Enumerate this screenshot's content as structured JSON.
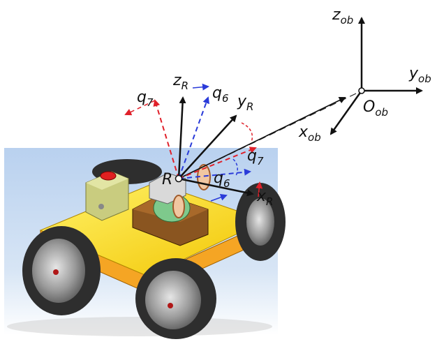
{
  "labels": {
    "z_ob": {
      "main": "z",
      "sub": "ob"
    },
    "y_ob": {
      "main": "y",
      "sub": "ob"
    },
    "x_ob": {
      "main": "x",
      "sub": "ob"
    },
    "O_ob": {
      "main": "O",
      "sub": "ob"
    },
    "z_R": {
      "main": "z",
      "sub": "R"
    },
    "y_R": {
      "main": "y",
      "sub": "R"
    },
    "x_R": {
      "main": "x",
      "sub": "R"
    },
    "R": "R",
    "q6_upper": {
      "main": "q",
      "sub": "6"
    },
    "q7_upper": {
      "main": "q",
      "sub": "7"
    },
    "q6_lower": {
      "main": "q",
      "sub": "6"
    },
    "q7_lower": {
      "main": "q",
      "sub": "7"
    }
  },
  "colors": {
    "axis": "#111111",
    "red_arrow": "#e0202a",
    "blue_arrow": "#2a3bd9",
    "chassis": "#ffd21a",
    "chassis_side": "#f0a020",
    "wheel": "#3a3a3a",
    "platform_bg": "#c9dcf2",
    "turret": "#8a5520",
    "panel": "#d6d98e",
    "estop": "#e02020"
  }
}
